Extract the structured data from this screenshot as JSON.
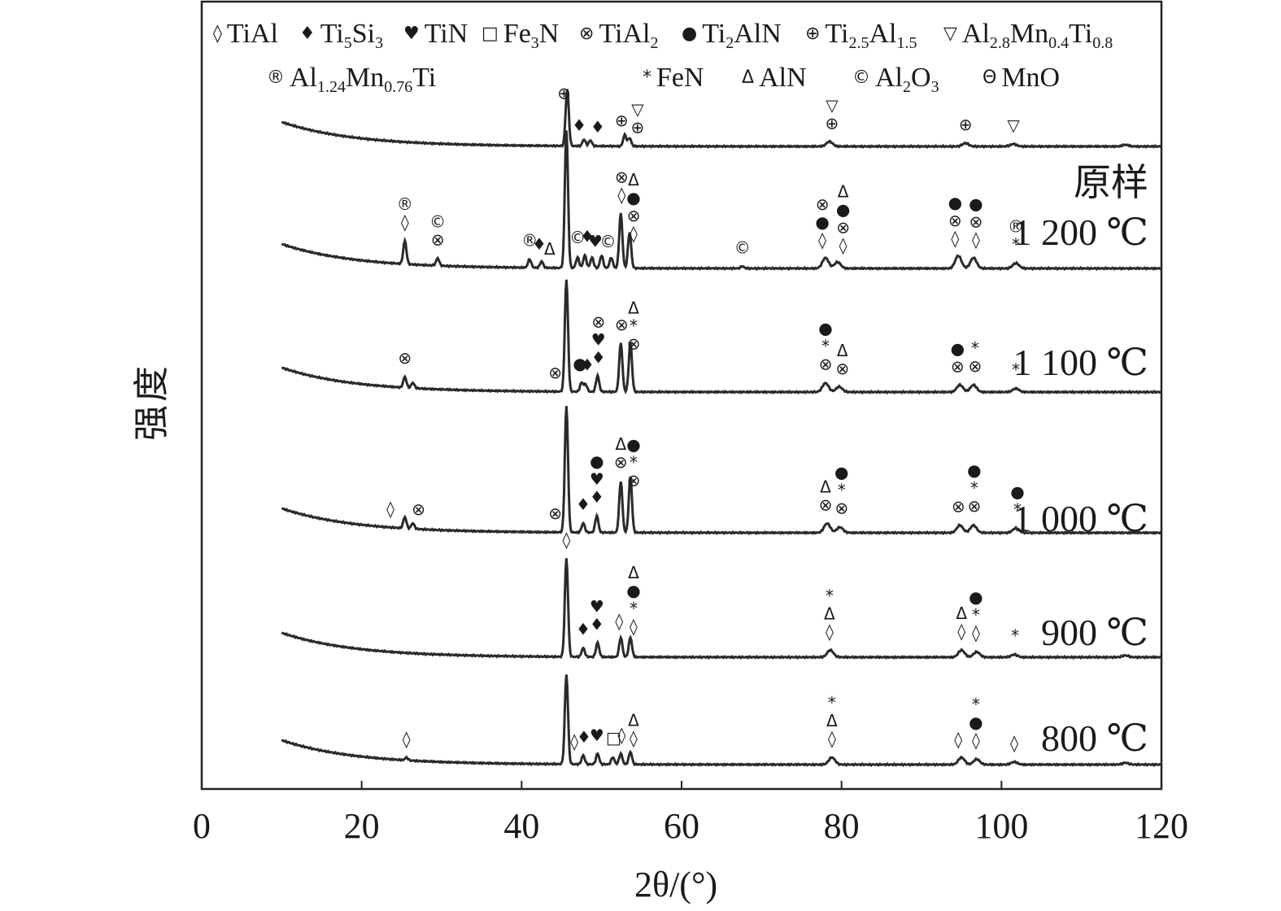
{
  "legend": [
    {
      "symbol": "◊",
      "name": "TiAl",
      "parts": [
        [
          "TiAl",
          ""
        ]
      ]
    },
    {
      "symbol": "♦",
      "name": "Ti5Si3",
      "parts": [
        [
          "Ti",
          ""
        ],
        [
          "5",
          "sub"
        ],
        [
          "Si",
          ""
        ],
        [
          "3",
          "sub"
        ]
      ]
    },
    {
      "symbol": "♥",
      "name": "TiN",
      "parts": [
        [
          "TiN",
          ""
        ]
      ]
    },
    {
      "symbol": "□",
      "name": "Fe3N",
      "parts": [
        [
          "Fe",
          ""
        ],
        [
          "3",
          "sub"
        ],
        [
          "N",
          ""
        ]
      ]
    },
    {
      "symbol": "⊗",
      "name": "TiAl2",
      "parts": [
        [
          "TiAl",
          ""
        ],
        [
          "2",
          "sub"
        ]
      ]
    },
    {
      "symbol": "●",
      "name": "Ti2AlN",
      "parts": [
        [
          "Ti",
          ""
        ],
        [
          "2",
          "sub"
        ],
        [
          "AlN",
          ""
        ]
      ]
    },
    {
      "symbol": "⊕",
      "name": "Ti2.5Al1.5",
      "parts": [
        [
          "Ti",
          ""
        ],
        [
          "2.5",
          "sub"
        ],
        [
          "Al",
          ""
        ],
        [
          "1.5",
          "sub"
        ]
      ]
    },
    {
      "symbol": "▽",
      "name": "Al2.8Mn0.4Ti0.8",
      "parts": [
        [
          "Al",
          ""
        ],
        [
          "2.8",
          "sub"
        ],
        [
          "Mn",
          ""
        ],
        [
          "0.4",
          "sub"
        ],
        [
          "Ti",
          ""
        ],
        [
          "0.8",
          "sub"
        ]
      ]
    },
    {
      "symbol": "®",
      "name": "Al1.24Mn0.76Ti",
      "parts": [
        [
          "Al",
          ""
        ],
        [
          "1.24",
          "sub"
        ],
        [
          "Mn",
          ""
        ],
        [
          "0.76",
          "sub"
        ],
        [
          "Ti",
          ""
        ]
      ]
    },
    {
      "symbol": "*",
      "name": "FeN",
      "parts": [
        [
          "FeN",
          ""
        ]
      ]
    },
    {
      "symbol": "Δ",
      "name": "AlN",
      "parts": [
        [
          "AlN",
          ""
        ]
      ]
    },
    {
      "symbol": "©",
      "name": "Al2O3",
      "parts": [
        [
          "Al",
          ""
        ],
        [
          "2",
          "sub"
        ],
        [
          "O",
          ""
        ],
        [
          "3",
          "sub"
        ]
      ]
    },
    {
      "symbol": "Θ",
      "name": "MnO",
      "parts": [
        [
          "MnO",
          ""
        ]
      ]
    }
  ],
  "chart_data": {
    "type": "line",
    "xlabel": "2θ/(°)",
    "ylabel": "强度",
    "xlim": [
      0,
      120
    ],
    "xticks": [
      0,
      20,
      40,
      60,
      80,
      100,
      120
    ],
    "y_ticks_shown": false,
    "series": [
      {
        "name": "原样",
        "peaks": [
          [
            45.7,
            0.7
          ],
          [
            47.8,
            0.08
          ],
          [
            48.6,
            0.07
          ],
          [
            52.9,
            0.14
          ],
          [
            53.5,
            0.1
          ],
          [
            78.5,
            0.06
          ],
          [
            95.5,
            0.04
          ],
          [
            101.5,
            0.03
          ],
          [
            115.5,
            0.02
          ]
        ],
        "markers": [
          {
            "x": 45.3,
            "stack": [
              "⊕"
            ]
          },
          {
            "x": 47.2,
            "stack": [
              "♦"
            ]
          },
          {
            "x": 49.5,
            "stack": [
              "♦"
            ]
          },
          {
            "x": 52.5,
            "stack": [
              "⊕"
            ]
          },
          {
            "x": 54.5,
            "stack": [
              "⊕",
              "▽"
            ]
          },
          {
            "x": 78.8,
            "stack": [
              "⊕",
              "▽"
            ]
          },
          {
            "x": 95.5,
            "stack": [
              "⊕"
            ]
          },
          {
            "x": 101.5,
            "stack": [
              "▽"
            ]
          }
        ]
      },
      {
        "name": "1 200 ℃",
        "peaks": [
          [
            25.4,
            0.22
          ],
          [
            29.5,
            0.07
          ],
          [
            41.0,
            0.08
          ],
          [
            42.5,
            0.06
          ],
          [
            45.6,
            1.3
          ],
          [
            47.0,
            0.1
          ],
          [
            47.9,
            0.12
          ],
          [
            48.8,
            0.1
          ],
          [
            50.0,
            0.12
          ],
          [
            51.2,
            0.1
          ],
          [
            52.4,
            0.52
          ],
          [
            53.5,
            0.34
          ],
          [
            67.6,
            0.02
          ],
          [
            78.0,
            0.1
          ],
          [
            79.5,
            0.06
          ],
          [
            94.6,
            0.12
          ],
          [
            96.5,
            0.1
          ],
          [
            101.8,
            0.05
          ]
        ],
        "markers": [
          {
            "x": 25.4,
            "stack": [
              "◊",
              "®"
            ]
          },
          {
            "x": 29.5,
            "stack": [
              "⊗",
              "©"
            ]
          },
          {
            "x": 41.0,
            "stack": [
              "®"
            ]
          },
          {
            "x": 42.2,
            "stack": [
              "♦"
            ]
          },
          {
            "x": 43.5,
            "stack": [
              "Δ"
            ]
          },
          {
            "x": 47.0,
            "stack": [
              "©"
            ]
          },
          {
            "x": 48.2,
            "stack": [
              "♦"
            ]
          },
          {
            "x": 49.2,
            "stack": [
              "♥"
            ]
          },
          {
            "x": 50.8,
            "stack": [
              "©"
            ]
          },
          {
            "x": 52.5,
            "stack": [
              "◊",
              "⊗"
            ]
          },
          {
            "x": 54.0,
            "stack": [
              "◊",
              "⊗",
              "●",
              "Δ"
            ]
          },
          {
            "x": 67.6,
            "stack": [
              "©"
            ]
          },
          {
            "x": 77.6,
            "stack": [
              "◊",
              "●",
              "⊗"
            ]
          },
          {
            "x": 80.2,
            "stack": [
              "◊",
              "⊗",
              "●",
              "Δ"
            ]
          },
          {
            "x": 94.2,
            "stack": [
              "◊",
              "⊗",
              "●"
            ]
          },
          {
            "x": 96.8,
            "stack": [
              "◊",
              "⊗",
              "●"
            ]
          },
          {
            "x": 101.8,
            "stack": [
              "*",
              "®"
            ]
          }
        ]
      },
      {
        "name": "1 100 ℃",
        "peaks": [
          [
            25.4,
            0.12
          ],
          [
            26.4,
            0.06
          ],
          [
            45.6,
            1.25
          ],
          [
            47.5,
            0.1
          ],
          [
            48.0,
            0.08
          ],
          [
            49.5,
            0.18
          ],
          [
            52.4,
            0.55
          ],
          [
            53.6,
            0.55
          ],
          [
            78.0,
            0.1
          ],
          [
            79.7,
            0.06
          ],
          [
            94.8,
            0.08
          ],
          [
            96.5,
            0.08
          ],
          [
            101.8,
            0.04
          ]
        ],
        "markers": [
          {
            "x": 25.4,
            "stack": [
              "⊗"
            ]
          },
          {
            "x": 44.2,
            "stack": [
              "⊗"
            ]
          },
          {
            "x": 47.3,
            "stack": [
              "●"
            ]
          },
          {
            "x": 48.2,
            "stack": [
              "♦"
            ]
          },
          {
            "x": 49.6,
            "stack": [
              "♦",
              "♥",
              "⊗"
            ]
          },
          {
            "x": 52.5,
            "stack": [
              "⊗"
            ]
          },
          {
            "x": 54.0,
            "stack": [
              "⊗",
              "*",
              "Δ"
            ]
          },
          {
            "x": 78.0,
            "stack": [
              "⊗",
              "*",
              "●"
            ]
          },
          {
            "x": 80.1,
            "stack": [
              "⊗",
              "Δ"
            ]
          },
          {
            "x": 94.5,
            "stack": [
              "⊗",
              "●"
            ]
          },
          {
            "x": 96.7,
            "stack": [
              "⊗",
              "*"
            ]
          },
          {
            "x": 101.8,
            "stack": [
              "*"
            ]
          }
        ]
      },
      {
        "name": "1 000 ℃",
        "peaks": [
          [
            25.4,
            0.12
          ],
          [
            26.4,
            0.06
          ],
          [
            45.6,
            1.35
          ],
          [
            47.7,
            0.1
          ],
          [
            49.4,
            0.18
          ],
          [
            52.4,
            0.55
          ],
          [
            53.6,
            0.6
          ],
          [
            78.2,
            0.1
          ],
          [
            79.8,
            0.06
          ],
          [
            94.8,
            0.08
          ],
          [
            96.5,
            0.08
          ],
          [
            101.8,
            0.05
          ]
        ],
        "markers": [
          {
            "x": 23.6,
            "stack": [
              "◊"
            ]
          },
          {
            "x": 27.1,
            "stack": [
              "⊗"
            ]
          },
          {
            "x": 44.2,
            "stack": [
              "⊗"
            ]
          },
          {
            "x": 47.7,
            "stack": [
              "♦"
            ]
          },
          {
            "x": 49.4,
            "stack": [
              "♦",
              "♥",
              "●"
            ]
          },
          {
            "x": 52.4,
            "stack": [
              "⊗",
              "Δ"
            ]
          },
          {
            "x": 54.0,
            "stack": [
              "⊗",
              "*",
              "●"
            ]
          },
          {
            "x": 78.0,
            "stack": [
              "⊗",
              "Δ"
            ]
          },
          {
            "x": 80.0,
            "stack": [
              "⊗",
              "*",
              "●"
            ]
          },
          {
            "x": 94.6,
            "stack": [
              "⊗"
            ]
          },
          {
            "x": 96.6,
            "stack": [
              "⊗",
              "*",
              "●"
            ]
          },
          {
            "x": 102.0,
            "stack": [
              "*",
              "●"
            ]
          }
        ]
      },
      {
        "name": "900 ℃",
        "peaks": [
          [
            45.6,
            1.1
          ],
          [
            47.7,
            0.1
          ],
          [
            49.5,
            0.16
          ],
          [
            52.4,
            0.22
          ],
          [
            53.6,
            0.22
          ],
          [
            78.6,
            0.08
          ],
          [
            95.0,
            0.08
          ],
          [
            96.9,
            0.06
          ],
          [
            101.6,
            0.03
          ],
          [
            115.5,
            0.02
          ]
        ],
        "markers": [
          {
            "x": 45.6,
            "stack": [
              "◊"
            ]
          },
          {
            "x": 47.7,
            "stack": [
              "♦"
            ]
          },
          {
            "x": 49.4,
            "stack": [
              "♦",
              "♥"
            ]
          },
          {
            "x": 52.2,
            "stack": [
              "◊"
            ]
          },
          {
            "x": 54.0,
            "stack": [
              "◊",
              "*",
              "●",
              "Δ"
            ]
          },
          {
            "x": 78.5,
            "stack": [
              "◊",
              "Δ",
              "*"
            ]
          },
          {
            "x": 95.0,
            "stack": [
              "◊",
              "Δ"
            ]
          },
          {
            "x": 96.8,
            "stack": [
              "◊",
              "*",
              "●"
            ]
          },
          {
            "x": 101.7,
            "stack": [
              "*"
            ]
          }
        ]
      },
      {
        "name": "800 ℃",
        "peaks": [
          [
            25.6,
            0.03
          ],
          [
            45.6,
            1.0
          ],
          [
            47.7,
            0.1
          ],
          [
            49.5,
            0.12
          ],
          [
            51.4,
            0.08
          ],
          [
            52.4,
            0.12
          ],
          [
            53.6,
            0.14
          ],
          [
            78.8,
            0.08
          ],
          [
            95.0,
            0.08
          ],
          [
            96.9,
            0.06
          ],
          [
            101.6,
            0.03
          ],
          [
            115.5,
            0.02
          ]
        ],
        "markers": [
          {
            "x": 25.6,
            "stack": [
              "◊"
            ]
          },
          {
            "x": 46.6,
            "stack": [
              "◊"
            ]
          },
          {
            "x": 47.8,
            "stack": [
              "♦"
            ]
          },
          {
            "x": 49.4,
            "stack": [
              "♥"
            ]
          },
          {
            "x": 51.5,
            "stack": [
              "□"
            ]
          },
          {
            "x": 52.5,
            "stack": [
              "◊"
            ]
          },
          {
            "x": 54.0,
            "stack": [
              "◊",
              "Δ"
            ]
          },
          {
            "x": 78.8,
            "stack": [
              "◊",
              "Δ",
              "*"
            ]
          },
          {
            "x": 94.6,
            "stack": [
              "◊"
            ]
          },
          {
            "x": 96.8,
            "stack": [
              "◊",
              "●",
              "*"
            ]
          },
          {
            "x": 101.6,
            "stack": [
              "◊"
            ]
          }
        ]
      }
    ]
  }
}
